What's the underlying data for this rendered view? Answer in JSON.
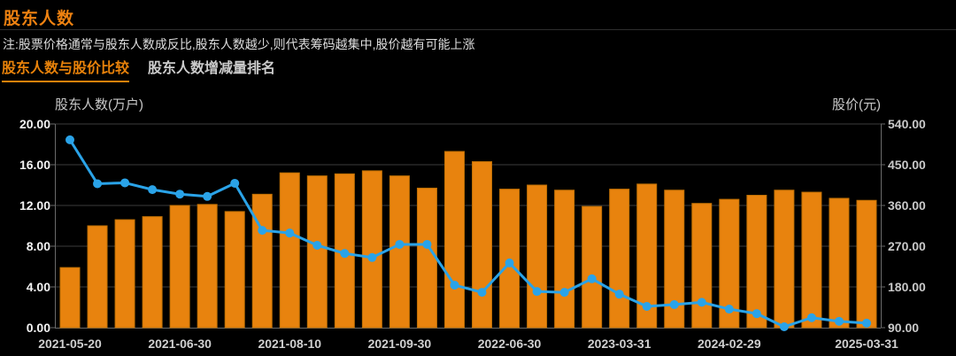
{
  "header": {
    "title": "股东人数",
    "note": "注:股票价格通常与股东人数成反比,股东人数越少,则代表筹码越集中,股价越有可能上涨",
    "tabs": [
      {
        "label": "股东人数与股价比较",
        "active": true
      },
      {
        "label": "股东人数增减量排名",
        "active": false
      }
    ]
  },
  "chart_data": {
    "type": "bar-line-combo",
    "bar_series": {
      "name": "股东人数",
      "axis": "left",
      "values": [
        5.9,
        10.0,
        10.6,
        10.9,
        12.0,
        12.1,
        11.4,
        13.1,
        15.2,
        14.9,
        15.1,
        15.4,
        14.9,
        13.7,
        17.3,
        16.3,
        13.6,
        14.0,
        13.5,
        11.9,
        13.6,
        14.1,
        13.5,
        12.2,
        12.6,
        13.0,
        13.5,
        13.3,
        12.7,
        12.5
      ]
    },
    "line_series": {
      "name": "股价",
      "axis": "right",
      "values": [
        505,
        408,
        410,
        395,
        385,
        380,
        409,
        305,
        299,
        272,
        254,
        245,
        274,
        274,
        184,
        168,
        233,
        170,
        168,
        198,
        164,
        137,
        141,
        146,
        131,
        121,
        92,
        112,
        104,
        100
      ]
    },
    "left_axis": {
      "title": "股东人数(万户)",
      "min": 0,
      "max": 20,
      "ticks": [
        "20.00",
        "16.00",
        "12.00",
        "8.00",
        "4.00",
        "0.00"
      ]
    },
    "right_axis": {
      "title": "股价(元)",
      "min": 90,
      "max": 540,
      "ticks": [
        "540.00",
        "450.00",
        "360.00",
        "270.00",
        "180.00",
        "90.00"
      ]
    },
    "x_ticks": [
      {
        "label": "2021-05-20",
        "index": 0
      },
      {
        "label": "2021-06-30",
        "index": 4
      },
      {
        "label": "2021-08-10",
        "index": 8
      },
      {
        "label": "2021-09-30",
        "index": 12
      },
      {
        "label": "2022-06-30",
        "index": 16
      },
      {
        "label": "2023-03-31",
        "index": 20
      },
      {
        "label": "2024-02-29",
        "index": 24
      },
      {
        "label": "2025-03-31",
        "index": 29
      }
    ],
    "grid": true,
    "legend": "none",
    "colors": {
      "bar": "#e8830e",
      "bar_border": "#bf7004",
      "line": "#2aa3e8",
      "grid": "#3c3c3c",
      "axis_line": "#6a6a6a",
      "left_tick_text": "#f2f2f2",
      "right_tick_text": "#c9c9c9",
      "x_tick_text": "#cfcfcf",
      "title_accent": "#ee8211",
      "tab_active": "#e8820a",
      "tab_inactive": "#cccccc",
      "background": "#000000"
    }
  }
}
